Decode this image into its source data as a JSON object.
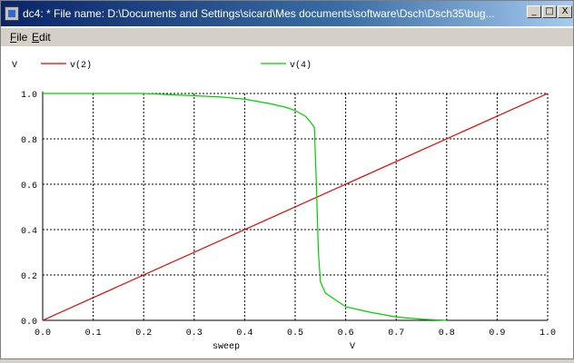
{
  "window": {
    "title": "dc4: * File name: D:\\Documents and Settings\\sicard\\Mes documents\\software\\Dsch\\Dsch35\\bug...",
    "controls": {
      "minimize": "_",
      "maximize": "□",
      "close": "X"
    }
  },
  "menu": {
    "file": {
      "accel": "F",
      "rest": "ile"
    },
    "edit": {
      "accel": "E",
      "rest": "dit"
    }
  },
  "chart_data": {
    "type": "line",
    "ylabel": "V",
    "xlabel": "sweep",
    "xunit": "V",
    "xlim": [
      0.0,
      1.0
    ],
    "ylim": [
      0.0,
      1.0
    ],
    "grid": true,
    "legend_position": "top",
    "xticks": [
      "0.0",
      "0.1",
      "0.2",
      "0.3",
      "0.4",
      "0.5",
      "0.6",
      "0.7",
      "0.8",
      "0.9",
      "1.0"
    ],
    "yticks": [
      "0.0",
      "0.2",
      "0.4",
      "0.6",
      "0.8",
      "1.0"
    ],
    "series": [
      {
        "name": "v(2)",
        "color": "#e00000",
        "x": [
          0.0,
          1.0
        ],
        "y": [
          0.0,
          1.0
        ]
      },
      {
        "name": "v(4)",
        "color": "#00d000",
        "x": [
          0.0,
          0.2,
          0.3,
          0.35,
          0.4,
          0.45,
          0.48,
          0.5,
          0.52,
          0.53,
          0.538,
          0.542,
          0.546,
          0.55,
          0.56,
          0.58,
          0.6,
          0.65,
          0.7,
          0.75,
          0.8
        ],
        "y": [
          1.0,
          1.0,
          0.99,
          0.985,
          0.975,
          0.955,
          0.94,
          0.925,
          0.9,
          0.875,
          0.85,
          0.6,
          0.3,
          0.17,
          0.12,
          0.09,
          0.06,
          0.035,
          0.015,
          0.005,
          0.0
        ]
      }
    ]
  }
}
